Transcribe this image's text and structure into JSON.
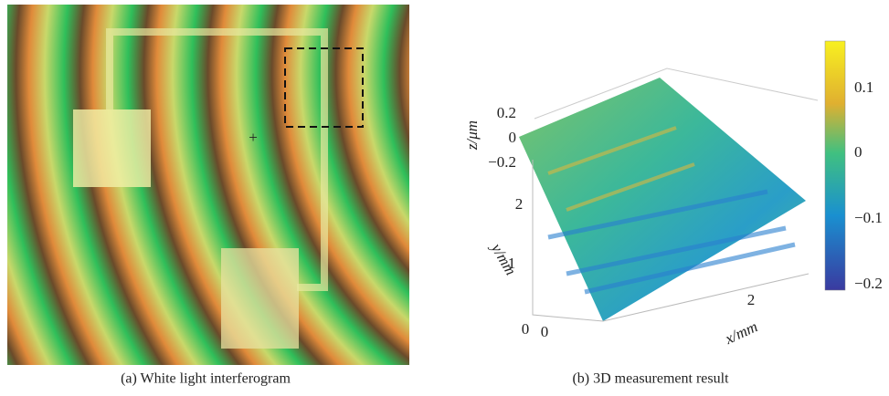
{
  "panels": [
    {
      "caption": "(a) White light interferogram"
    },
    {
      "caption": "(b) 3D measurement result",
      "axes": {
        "z_label": "z/μm",
        "z_ticks": [
          "0.2",
          "0",
          "−0.2"
        ],
        "y_label": "y/mm",
        "y_ticks": [
          "2",
          "1",
          "0"
        ],
        "x_label": "x/mm",
        "x_ticks": [
          "0",
          "2"
        ]
      },
      "colorbar": {
        "ticks": [
          "0.1",
          "0",
          "−0.1",
          "−0.2"
        ]
      }
    }
  ]
}
